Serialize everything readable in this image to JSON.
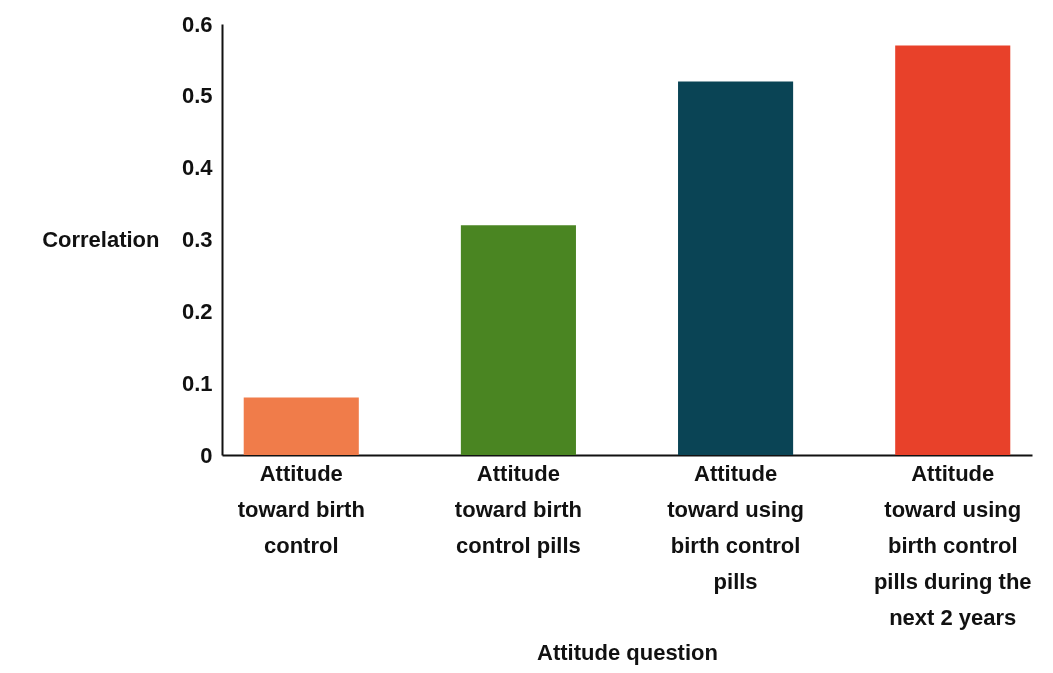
{
  "chart_data": {
    "type": "bar",
    "xlabel": "Attitude question",
    "ylabel": "Correlation",
    "categories": [
      "Attitude toward birth control",
      "Attitude toward birth control pills",
      "Attitude toward using birth control pills",
      "Attitude toward using birth control pills during the next 2 years"
    ],
    "values": [
      0.08,
      0.32,
      0.52,
      0.57
    ],
    "colors": [
      "#f07c4a",
      "#4a8522",
      "#0a4455",
      "#e8412a"
    ],
    "ylim": [
      0,
      0.6
    ],
    "yticks": [
      0,
      0.1,
      0.2,
      0.3,
      0.4,
      0.5,
      0.6
    ],
    "grid": false
  }
}
